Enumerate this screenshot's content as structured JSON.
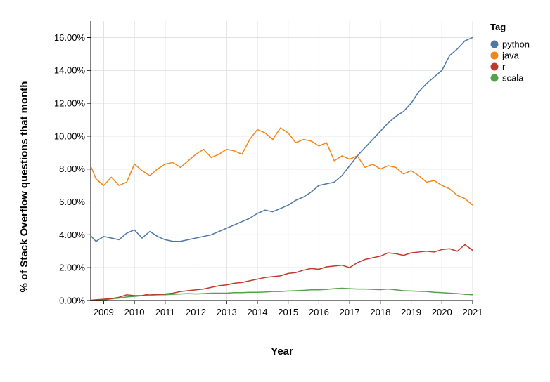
{
  "chart_data": {
    "type": "line",
    "xlabel": "Year",
    "ylabel": "% of Stack Overflow questions that month",
    "legend_title": "Tag",
    "legend_position": "top-right",
    "grid": true,
    "xlim": [
      2008.58,
      2021.0
    ],
    "ylim": [
      0,
      17
    ],
    "x_ticks": [
      2009,
      2010,
      2011,
      2012,
      2013,
      2014,
      2015,
      2016,
      2017,
      2018,
      2019,
      2020,
      2021
    ],
    "y_ticks": [
      "0.00%",
      "2.00%",
      "4.00%",
      "6.00%",
      "8.00%",
      "10.00%",
      "12.00%",
      "14.00%",
      "16.00%"
    ],
    "y_tick_values": [
      0,
      2,
      4,
      6,
      8,
      10,
      12,
      14,
      16
    ],
    "series": [
      {
        "name": "python",
        "color": "#4C78A8",
        "x": [
          2008.6,
          2008.75,
          2009.0,
          2009.25,
          2009.5,
          2009.75,
          2010.0,
          2010.25,
          2010.5,
          2010.75,
          2011.0,
          2011.25,
          2011.5,
          2011.75,
          2012.0,
          2012.25,
          2012.5,
          2012.75,
          2013.0,
          2013.25,
          2013.5,
          2013.75,
          2014.0,
          2014.25,
          2014.5,
          2014.75,
          2015.0,
          2015.25,
          2015.5,
          2015.75,
          2016.0,
          2016.25,
          2016.5,
          2016.75,
          2017.0,
          2017.25,
          2017.5,
          2017.75,
          2018.0,
          2018.25,
          2018.5,
          2018.75,
          2019.0,
          2019.25,
          2019.5,
          2019.75,
          2020.0,
          2020.25,
          2020.5,
          2020.75,
          2021.0
        ],
        "values": [
          3.9,
          3.6,
          3.9,
          3.8,
          3.7,
          4.1,
          4.3,
          3.8,
          4.2,
          3.9,
          3.7,
          3.6,
          3.6,
          3.7,
          3.8,
          3.9,
          4.0,
          4.2,
          4.4,
          4.6,
          4.8,
          5.0,
          5.3,
          5.5,
          5.4,
          5.6,
          5.8,
          6.1,
          6.3,
          6.6,
          7.0,
          7.1,
          7.2,
          7.6,
          8.2,
          8.8,
          9.3,
          9.8,
          10.3,
          10.8,
          11.2,
          11.5,
          12.0,
          12.7,
          13.2,
          13.6,
          14.0,
          14.9,
          15.3,
          15.8,
          16.0
        ]
      },
      {
        "name": "java",
        "color": "#F58518",
        "x": [
          2008.6,
          2008.75,
          2009.0,
          2009.25,
          2009.5,
          2009.75,
          2010.0,
          2010.25,
          2010.5,
          2010.75,
          2011.0,
          2011.25,
          2011.5,
          2011.75,
          2012.0,
          2012.25,
          2012.5,
          2012.75,
          2013.0,
          2013.25,
          2013.5,
          2013.75,
          2014.0,
          2014.25,
          2014.5,
          2014.75,
          2015.0,
          2015.25,
          2015.5,
          2015.75,
          2016.0,
          2016.25,
          2016.5,
          2016.75,
          2017.0,
          2017.25,
          2017.5,
          2017.75,
          2018.0,
          2018.25,
          2018.5,
          2018.75,
          2019.0,
          2019.25,
          2019.5,
          2019.75,
          2020.0,
          2020.25,
          2020.5,
          2020.75,
          2021.0
        ],
        "values": [
          8.1,
          7.4,
          7.0,
          7.5,
          7.0,
          7.2,
          8.3,
          7.9,
          7.6,
          8.0,
          8.3,
          8.4,
          8.1,
          8.5,
          8.9,
          9.2,
          8.7,
          8.9,
          9.2,
          9.1,
          8.9,
          9.8,
          10.4,
          10.2,
          9.8,
          10.5,
          10.2,
          9.6,
          9.8,
          9.7,
          9.4,
          9.6,
          8.5,
          8.8,
          8.6,
          8.8,
          8.1,
          8.3,
          8.0,
          8.2,
          8.1,
          7.7,
          7.9,
          7.6,
          7.2,
          7.3,
          7.0,
          6.8,
          6.4,
          6.2,
          5.8
        ]
      },
      {
        "name": "r",
        "color": "#C0392B",
        "x": [
          2008.6,
          2008.75,
          2009.0,
          2009.25,
          2009.5,
          2009.75,
          2010.0,
          2010.25,
          2010.5,
          2010.75,
          2011.0,
          2011.25,
          2011.5,
          2011.75,
          2012.0,
          2012.25,
          2012.5,
          2012.75,
          2013.0,
          2013.25,
          2013.5,
          2013.75,
          2014.0,
          2014.25,
          2014.5,
          2014.75,
          2015.0,
          2015.25,
          2015.5,
          2015.75,
          2016.0,
          2016.25,
          2016.5,
          2016.75,
          2017.0,
          2017.25,
          2017.5,
          2017.75,
          2018.0,
          2018.25,
          2018.5,
          2018.75,
          2019.0,
          2019.25,
          2019.5,
          2019.75,
          2020.0,
          2020.25,
          2020.5,
          2020.75,
          2021.0
        ],
        "values": [
          0.02,
          0.05,
          0.08,
          0.12,
          0.2,
          0.35,
          0.3,
          0.3,
          0.4,
          0.35,
          0.4,
          0.45,
          0.55,
          0.6,
          0.65,
          0.7,
          0.8,
          0.9,
          0.95,
          1.05,
          1.1,
          1.2,
          1.3,
          1.4,
          1.45,
          1.5,
          1.65,
          1.7,
          1.85,
          1.95,
          1.9,
          2.05,
          2.1,
          2.15,
          2.0,
          2.3,
          2.5,
          2.6,
          2.7,
          2.9,
          2.85,
          2.75,
          2.9,
          2.95,
          3.0,
          2.95,
          3.1,
          3.15,
          3.0,
          3.4,
          3.05
        ]
      },
      {
        "name": "scala",
        "color": "#54A24B",
        "x": [
          2008.6,
          2008.75,
          2009.0,
          2009.25,
          2009.5,
          2009.75,
          2010.0,
          2010.25,
          2010.5,
          2010.75,
          2011.0,
          2011.25,
          2011.5,
          2011.75,
          2012.0,
          2012.25,
          2012.5,
          2012.75,
          2013.0,
          2013.25,
          2013.5,
          2013.75,
          2014.0,
          2014.25,
          2014.5,
          2014.75,
          2015.0,
          2015.25,
          2015.5,
          2015.75,
          2016.0,
          2016.25,
          2016.5,
          2016.75,
          2017.0,
          2017.25,
          2017.5,
          2017.75,
          2018.0,
          2018.25,
          2018.5,
          2018.75,
          2019.0,
          2019.25,
          2019.5,
          2019.75,
          2020.0,
          2020.25,
          2020.5,
          2020.75,
          2021.0
        ],
        "values": [
          0.0,
          0.01,
          0.03,
          0.1,
          0.15,
          0.22,
          0.25,
          0.3,
          0.32,
          0.35,
          0.35,
          0.38,
          0.4,
          0.42,
          0.4,
          0.42,
          0.45,
          0.45,
          0.45,
          0.48,
          0.48,
          0.5,
          0.5,
          0.52,
          0.55,
          0.55,
          0.58,
          0.6,
          0.62,
          0.65,
          0.65,
          0.68,
          0.72,
          0.75,
          0.72,
          0.7,
          0.7,
          0.68,
          0.66,
          0.7,
          0.65,
          0.6,
          0.58,
          0.56,
          0.55,
          0.5,
          0.48,
          0.45,
          0.42,
          0.38,
          0.35
        ]
      }
    ]
  }
}
